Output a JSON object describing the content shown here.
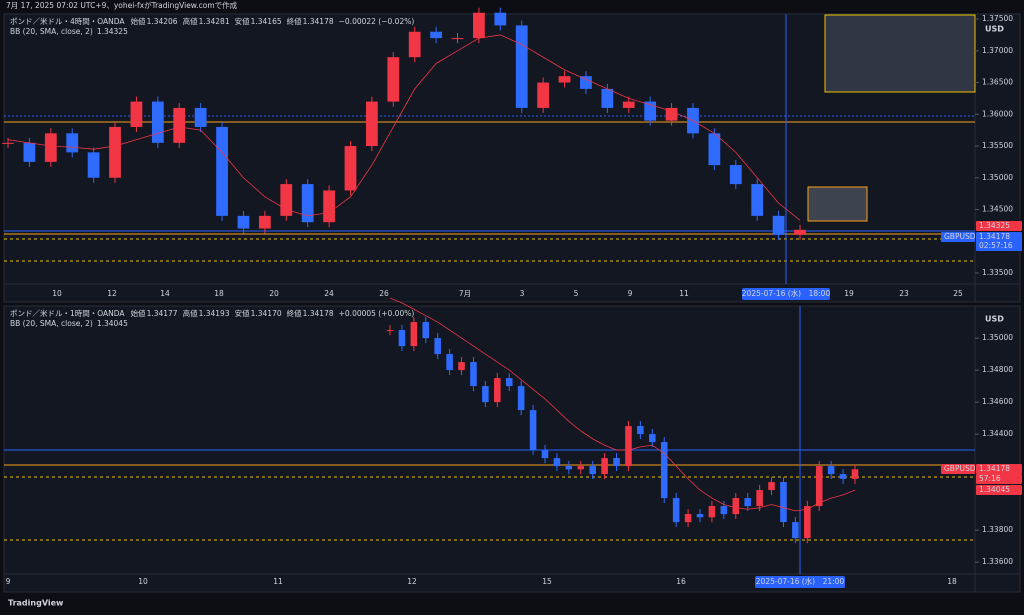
{
  "top_bar": "7月 17, 2025 07:02 UTC+9、yohei-fxがTradingView.comで作成",
  "footer": "TradingView",
  "currency": "USD",
  "panels": [
    {
      "symbol": "ポンド／米ドル・4時間・OANDA",
      "ohlc": [
        "始値",
        "1.34206",
        "高値",
        "1.34281",
        "安値",
        "1.34165",
        "終値",
        "1.34178"
      ],
      "change": "−0.00022 (−0.02%)",
      "bb_label": "BB (20, SMA, close, 2)",
      "bb_value": "1.34325",
      "ylim": [
        1.33342,
        1.37564
      ],
      "yticks": [
        {
          "value": 1.375,
          "label": "1.37500"
        },
        {
          "value": 1.37,
          "label": "1.37000"
        },
        {
          "value": 1.365,
          "label": "1.36500"
        },
        {
          "value": 1.36,
          "label": "1.36000"
        },
        {
          "value": 1.355,
          "label": "1.35500"
        },
        {
          "value": 1.35,
          "label": "1.35000"
        },
        {
          "value": 1.345,
          "label": "1.34500"
        },
        {
          "value": 1.335,
          "label": "1.33500"
        }
      ],
      "xticks": [
        "10",
        "12",
        "14",
        "18",
        "20",
        "24",
        "26",
        "7月",
        "3",
        "5",
        "9",
        "11",
        "19",
        "23",
        "25"
      ],
      "crosshair": "2025-07-16 (水)　18:00",
      "price_labels": [
        "1.34325",
        "GBPUSD",
        "1.34178",
        "02:57:16"
      ],
      "closes": [
        1.3555,
        1.3525,
        1.357,
        1.354,
        1.35,
        1.358,
        1.362,
        1.3555,
        1.361,
        1.358,
        1.344,
        1.342,
        1.344,
        1.349,
        1.343,
        1.348,
        1.355,
        1.362,
        1.369,
        1.373,
        1.372,
        1.372,
        1.376,
        1.374,
        1.361,
        1.365,
        1.366,
        1.364,
        1.361,
        1.362,
        1.359,
        1.361,
        1.357,
        1.352,
        1.349,
        1.344,
        1.341,
        1.3418
      ],
      "bb": [
        1.356,
        1.3555,
        1.355,
        1.3548,
        1.3545,
        1.355,
        1.356,
        1.357,
        1.358,
        1.3575,
        1.354,
        1.35,
        1.347,
        1.345,
        1.344,
        1.3445,
        1.347,
        1.352,
        1.358,
        1.364,
        1.368,
        1.37,
        1.372,
        1.3725,
        1.371,
        1.369,
        1.367,
        1.3655,
        1.364,
        1.3625,
        1.3615,
        1.3605,
        1.359,
        1.357,
        1.354,
        1.35,
        1.346,
        1.3433
      ]
    },
    {
      "symbol": "ポンド／米ドル・1時間・OANDA",
      "ohlc": [
        "始値",
        "1.34177",
        "高値",
        "1.34193",
        "安値",
        "1.34170",
        "終値",
        "1.34178"
      ],
      "change": "+0.00005 (+0.00%)",
      "bb_label": "BB (20, SMA, close, 2)",
      "bb_value": "1.34045",
      "ylim": [
        1.33538,
        1.35188
      ],
      "yticks": [
        {
          "value": 1.35,
          "label": "1.35000"
        },
        {
          "value": 1.348,
          "label": "1.34800"
        },
        {
          "value": 1.346,
          "label": "1.34600"
        },
        {
          "value": 1.344,
          "label": "1.34400"
        },
        {
          "value": 1.338,
          "label": "1.33800"
        },
        {
          "value": 1.336,
          "label": "1.33600"
        }
      ],
      "xticks": [
        "9",
        "10",
        "11",
        "12",
        "15",
        "16",
        "18"
      ],
      "crosshair": "2025-07-16 (水)　21:00",
      "price_labels": [
        "GBPUSD",
        "1.34178",
        "57:16",
        "1.34045"
      ],
      "closes": [
        1.3505,
        1.3495,
        1.351,
        1.35,
        1.349,
        1.348,
        1.3485,
        1.347,
        1.346,
        1.3475,
        1.347,
        1.3455,
        1.343,
        1.3425,
        1.342,
        1.3418,
        1.342,
        1.3415,
        1.3425,
        1.342,
        1.3445,
        1.344,
        1.3435,
        1.34,
        1.3385,
        1.339,
        1.3388,
        1.3395,
        1.339,
        1.34,
        1.3395,
        1.3405,
        1.341,
        1.3385,
        1.3375,
        1.3395,
        1.342,
        1.3415,
        1.3412,
        1.3418
      ],
      "bb": [
        1.3525,
        1.3522,
        1.3518,
        1.3514,
        1.351,
        1.3505,
        1.35,
        1.3495,
        1.349,
        1.3485,
        1.348,
        1.3474,
        1.3468,
        1.3462,
        1.3455,
        1.3448,
        1.3442,
        1.3437,
        1.3433,
        1.343,
        1.343,
        1.3432,
        1.3433,
        1.3428,
        1.342,
        1.3412,
        1.3405,
        1.34,
        1.3396,
        1.3394,
        1.3393,
        1.3394,
        1.3396,
        1.3394,
        1.3392,
        1.3393,
        1.3397,
        1.34,
        1.3402,
        1.3405
      ]
    }
  ]
}
